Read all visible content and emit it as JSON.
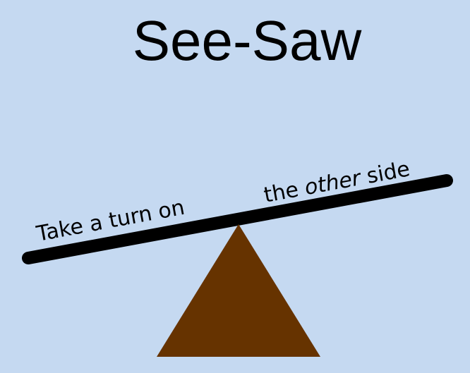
{
  "title": "See-Saw",
  "labels": {
    "left": "Take a turn on",
    "right_before": "the ",
    "right_emphasis": "other",
    "right_after": " side"
  },
  "colors": {
    "background": "#c5d9f1",
    "plank": "#000000",
    "fulcrum": "#663300",
    "text": "#000000"
  }
}
